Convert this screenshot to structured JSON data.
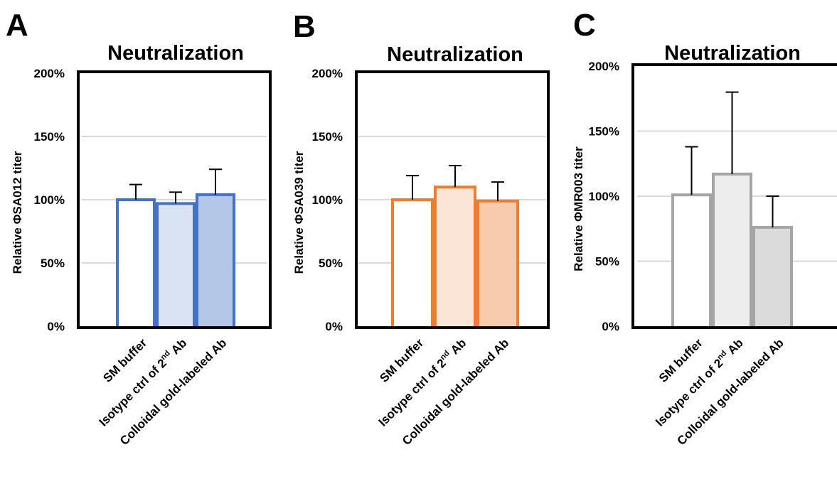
{
  "chart_data": [
    {
      "panel": "A",
      "type": "bar",
      "title": "Neutralization",
      "ylabel": "Relative ΦSA012 titer",
      "ylim": [
        0,
        200
      ],
      "yticks": [
        "0%",
        "50%",
        "100%",
        "150%",
        "200%"
      ],
      "grid": true,
      "categories": [
        {
          "text": "SM buffer"
        },
        {
          "text": "Isotype ctrl of 2",
          "sup": "nd",
          "after": " Ab"
        },
        {
          "text": "Colloidal gold-labeled Ab"
        }
      ],
      "values": [
        100,
        97,
        104
      ],
      "errors": [
        12,
        9,
        20
      ],
      "edge_color": "#4472C4",
      "fill_colors": [
        "#FFFFFF",
        "#DAE3F3",
        "#B4C7E7"
      ]
    },
    {
      "panel": "B",
      "type": "bar",
      "title": "Neutralization",
      "ylabel": "Relative ΦSA039 titer",
      "ylim": [
        0,
        200
      ],
      "yticks": [
        "0%",
        "50%",
        "100%",
        "150%",
        "200%"
      ],
      "grid": true,
      "categories": [
        {
          "text": "SM buffer"
        },
        {
          "text": "Isotype ctrl of 2",
          "sup": "nd",
          "after": " Ab"
        },
        {
          "text": "Colloidal gold-labeled Ab"
        }
      ],
      "values": [
        100,
        110,
        99
      ],
      "errors": [
        19,
        17,
        15
      ],
      "edge_color": "#ED7D31",
      "fill_colors": [
        "#FFFFFF",
        "#FBE5D6",
        "#F8CBAD"
      ]
    },
    {
      "panel": "C",
      "type": "bar",
      "title": "Neutralization",
      "ylabel": "Relative ΦMR003 titer",
      "ylim": [
        0,
        200
      ],
      "yticks": [
        "0%",
        "50%",
        "100%",
        "150%",
        "200%"
      ],
      "grid": true,
      "categories": [
        {
          "text": "SM buffer"
        },
        {
          "text": "Isotype ctrl of 2",
          "sup": "nd",
          "after": " Ab"
        },
        {
          "text": "Colloidal gold-labeled Ab"
        }
      ],
      "values": [
        101,
        117,
        76
      ],
      "errors": [
        37,
        63,
        24
      ],
      "edge_color": "#A5A5A5",
      "fill_colors": [
        "#FFFFFF",
        "#EDEDED",
        "#DBDBDB"
      ]
    }
  ]
}
